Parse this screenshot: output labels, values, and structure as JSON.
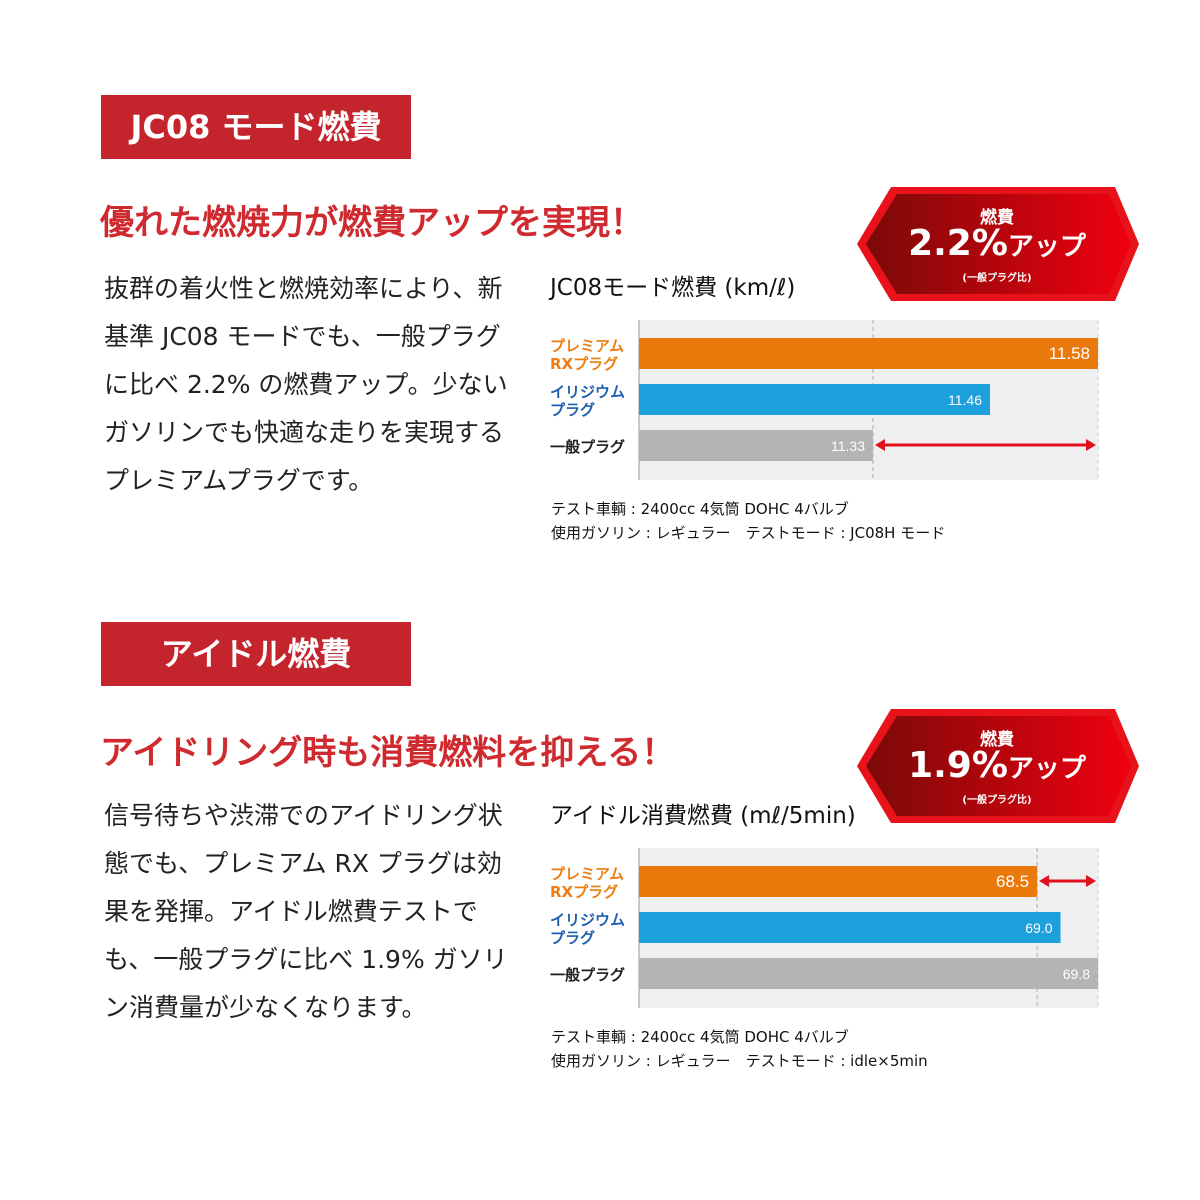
{
  "sections": [
    {
      "label": "JC08 モード燃費",
      "headline": "優れた燃焼力が燃費アップを実現！",
      "body": "抜群の着火性と燃焼効率により、新基準 JC08 モードでも、一般プラグに比べ 2.2% の燃費アップ。少ないガソリンでも快適な走りを実現するプレミアムプラグです。",
      "badge": {
        "top": "燃費",
        "value": "2.2%",
        "suffix": "アップ",
        "sub": "(一般プラグ比)"
      },
      "notes": [
        "テスト車輌 : 2400cc 4気筒 DOHC 4バルブ",
        "使用ガソリン : レギュラー　テストモード : JC08H モード"
      ]
    },
    {
      "label": "アイドル燃費",
      "headline": "アイドリング時も消費燃料を抑える！",
      "body": "信号待ちや渋滞でのアイドリング状態でも、プレミアム RX プラグは効果を発揮。アイドル燃費テストでも、一般プラグに比べ 1.9% ガソリン消費量が少なくなります。",
      "badge": {
        "top": "燃費",
        "value": "1.9%",
        "suffix": "アップ",
        "sub": "(一般プラグ比)"
      },
      "notes": [
        "テスト車輌 : 2400cc 4気筒 DOHC 4バルブ",
        "使用ガソリン : レギュラー　テストモード : idle×5min"
      ]
    }
  ],
  "chart_data": [
    {
      "type": "bar",
      "orientation": "horizontal",
      "title": "JC08モード燃費 (km/ℓ)",
      "categories": [
        "プレミアム RXプラグ",
        "イリジウム プラグ",
        "一般プラグ"
      ],
      "category_colors": [
        "#e8790a",
        "#1ea0dc",
        "#b4b4b4"
      ],
      "label_colors": [
        "#ee7d12",
        "#1e5fae",
        "#222222"
      ],
      "values": [
        11.58,
        11.46,
        11.33
      ],
      "value_labels": [
        "11.58",
        "11.46",
        "11.33"
      ],
      "xlim": [
        11.07,
        11.58
      ],
      "reference_line": 11.33,
      "arrow": [
        11.33,
        11.58
      ],
      "arrow_color": "#e0101c"
    },
    {
      "type": "bar",
      "orientation": "horizontal",
      "title": "アイドル消費燃費 (mℓ/5min)",
      "categories": [
        "プレミアム RXプラグ",
        "イリジウム プラグ",
        "一般プラグ"
      ],
      "category_colors": [
        "#e8790a",
        "#1ea0dc",
        "#b4b4b4"
      ],
      "label_colors": [
        "#ee7d12",
        "#1e5fae",
        "#222222"
      ],
      "values": [
        68.5,
        69.0,
        69.8
      ],
      "value_labels": [
        "68.5",
        "69.0",
        "69.8"
      ],
      "xlim": [
        60,
        69.8
      ],
      "reference_line": 68.5,
      "arrow": [
        68.5,
        69.8
      ],
      "arrow_color": "#e0101c"
    }
  ]
}
